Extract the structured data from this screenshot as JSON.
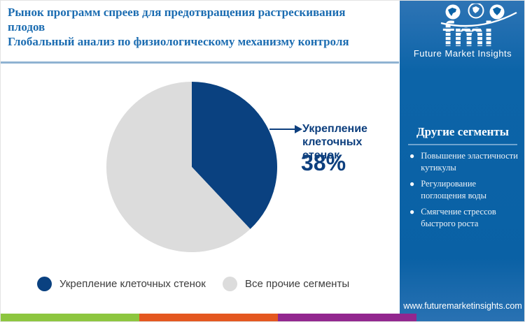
{
  "title": {
    "line1": "Рынок программ спреев для предотвращения растрескивания плодов",
    "line2": "Глобальный анализ по физиологическому механизму контроля"
  },
  "chart_data": {
    "type": "pie",
    "title": "Рынок программ спреев для предотвращения растрескивания плодов — доля по физиологическому механизму контроля",
    "slices": [
      {
        "label": "Укрепление клеточных стенок",
        "value": 38,
        "color": "#0a4180"
      },
      {
        "label": "Все прочие сегменты",
        "value": 62,
        "color": "#dcdcdc"
      }
    ],
    "start_angle_deg": 0,
    "direction": "clockwise",
    "legend_position": "bottom",
    "callout": {
      "label": "Укрепление клеточных стенок",
      "value_label": "38%"
    }
  },
  "legend": [
    {
      "label": "Укрепление клеточных стенок",
      "color": "#0a4180"
    },
    {
      "label": "Все прочие сегменты",
      "color": "#dcdcdc"
    }
  ],
  "sidebar": {
    "logo": {
      "text": "fmi",
      "subtext": "Future Market Insights"
    },
    "heading": "Другие сегменты",
    "bullets": [
      "Повышение эластичности кутикулы",
      "Регулирование поглощения воды",
      "Смягчение стрессов быстрого роста"
    ],
    "url": "www.futuremarketinsights.com",
    "background_color": "#0b63a7"
  },
  "footer": {
    "colors": [
      "#8dc63f",
      "#e4571f",
      "#92278f"
    ]
  },
  "theme": {
    "title_color": "#1b6cb1",
    "accent_navy": "#0d3f7e",
    "divider_color": "#8fb3d2"
  }
}
